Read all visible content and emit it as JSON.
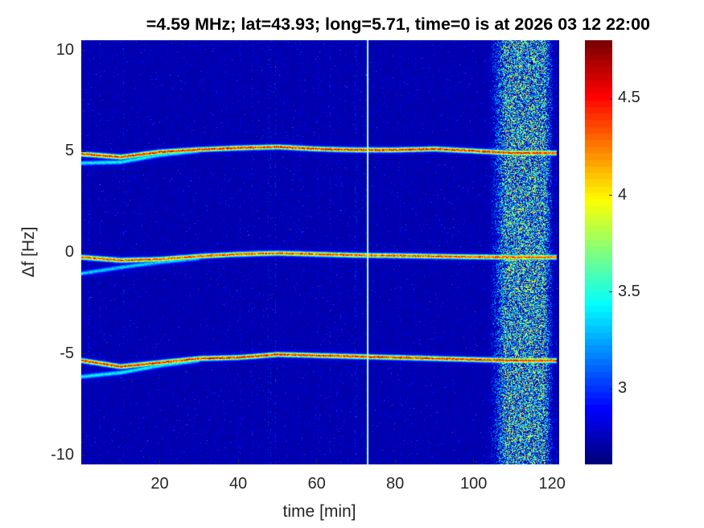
{
  "chart_data": {
    "type": "heatmap",
    "title": "=4.59 MHz;  lat=43.93; long=5.71, time=0 is at 2026 03 12 22:00",
    "xlabel": "time [min]",
    "ylabel": "Δf [Hz]",
    "xlim": [
      0,
      121.8
    ],
    "ylim": [
      -10.45,
      10.5
    ],
    "xticks": [
      20,
      40,
      60,
      80,
      100,
      120
    ],
    "xtick_labels": [
      "20",
      "40",
      "60",
      "80",
      "100",
      "120"
    ],
    "yticks": [
      10,
      5,
      0,
      -5,
      -10
    ],
    "ytick_labels": [
      "10",
      "5",
      "0",
      "-5",
      "-10"
    ],
    "colorbar": {
      "colormap": "jet",
      "range": [
        2.61,
        4.8
      ],
      "ticks": [
        4.5,
        4,
        3.5,
        3
      ],
      "tick_labels": [
        "4.5",
        "4",
        "3.5",
        "3"
      ]
    },
    "background_level": 2.72,
    "traces": [
      {
        "name": "upper",
        "t": [
          0,
          10,
          20,
          30,
          40,
          50,
          60,
          70,
          80,
          90,
          100,
          110,
          121
        ],
        "f": [
          4.9,
          4.75,
          5.0,
          5.12,
          5.2,
          5.25,
          5.15,
          5.1,
          5.1,
          5.15,
          5.05,
          4.95,
          4.95
        ],
        "level": 4.6
      },
      {
        "name": "middle",
        "t": [
          0,
          10,
          20,
          30,
          40,
          50,
          60,
          70,
          80,
          90,
          100,
          110,
          121
        ],
        "f": [
          -0.2,
          -0.35,
          -0.3,
          -0.15,
          -0.05,
          0.0,
          -0.05,
          -0.1,
          -0.12,
          -0.15,
          -0.18,
          -0.2,
          -0.2
        ],
        "level": 4.5
      },
      {
        "name": "lower",
        "t": [
          0,
          10,
          20,
          30,
          40,
          50,
          60,
          70,
          80,
          90,
          100,
          110,
          121
        ],
        "f": [
          -5.3,
          -5.6,
          -5.4,
          -5.2,
          -5.15,
          -5.0,
          -5.05,
          -5.1,
          -5.15,
          -5.2,
          -5.25,
          -5.3,
          -5.3
        ],
        "level": 4.6
      }
    ],
    "secondary_branches": [
      {
        "name": "upper-branch",
        "t": [
          0,
          10,
          20,
          30
        ],
        "f": [
          4.45,
          4.5,
          4.85,
          5.05
        ],
        "level": 3.5
      },
      {
        "name": "middle-branch",
        "t": [
          0,
          10,
          20,
          30
        ],
        "f": [
          -1.0,
          -0.7,
          -0.45,
          -0.25
        ],
        "level": 3.4
      },
      {
        "name": "lower-branch",
        "t": [
          0,
          10,
          20,
          30
        ],
        "f": [
          -6.1,
          -5.9,
          -5.55,
          -5.3
        ],
        "level": 3.5
      }
    ],
    "noise_band": {
      "t_start": 105,
      "t_end": 121,
      "level": 3.6
    },
    "vertical_marker": {
      "t": 73,
      "color": "#b8f5c8"
    }
  }
}
